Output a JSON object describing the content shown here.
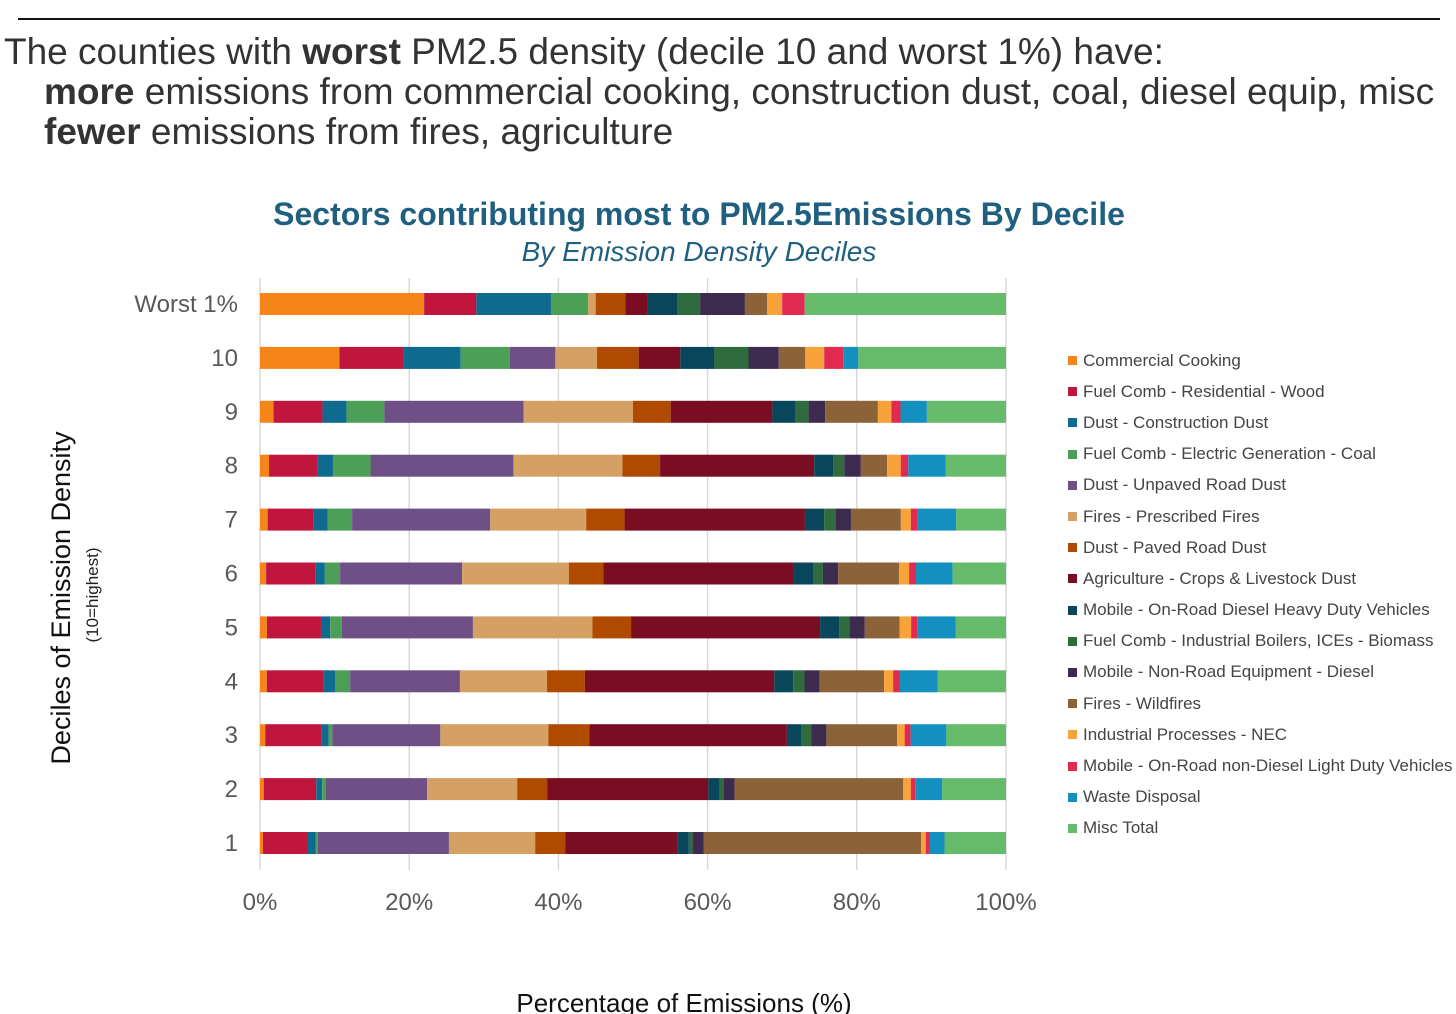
{
  "headline": {
    "line1_pre": "The counties with ",
    "line1_bold": "worst",
    "line1_post": " PM2.5 density (decile 10 and worst 1%) have:",
    "line2_bold": "more",
    "line2_post": " emissions from commercial cooking, construction dust, coal, diesel equip, misc",
    "line3_bold": "fewer",
    "line3_post": " emissions from fires, agriculture"
  },
  "chart_data": {
    "type": "bar",
    "orientation": "horizontal",
    "stacked": "100%",
    "title": "Sectors contributing most to PM2.5Emissions By Decile",
    "subtitle": "By Emission Density Deciles",
    "xlabel": "Percentage of Emissions (%)",
    "ylabel": "Deciles of Emission Density",
    "ylabel_sub": "(10=highest)",
    "xlim": [
      0,
      100
    ],
    "x_ticks": [
      "0%",
      "20%",
      "40%",
      "60%",
      "80%",
      "100%"
    ],
    "grid": "vertical",
    "legend_position": "right",
    "categories": [
      "Worst 1%",
      "10",
      "9",
      "8",
      "7",
      "6",
      "5",
      "4",
      "3",
      "2",
      "1"
    ],
    "series": [
      {
        "name": "Commercial Cooking",
        "color": "#f58518",
        "values": [
          22,
          10.5,
          1.8,
          1.2,
          1.0,
          0.8,
          0.9,
          0.9,
          0.7,
          0.5,
          0.4
        ]
      },
      {
        "name": "Fuel Comb - Residential - Wood",
        "color": "#c0163e",
        "values": [
          7,
          8.5,
          6.5,
          6.5,
          6.0,
          6.5,
          7.0,
          7.5,
          7.5,
          7.0,
          6.0
        ]
      },
      {
        "name": "Dust - Construction Dust",
        "color": "#0f6a8f",
        "values": [
          10,
          7.5,
          3.2,
          2.0,
          1.8,
          1.2,
          1.2,
          1.5,
          1.0,
          0.8,
          1.0
        ]
      },
      {
        "name": "Fuel Comb - Electric Generation - Coal",
        "color": "#4d9f57",
        "values": [
          5,
          6.5,
          5.0,
          5.0,
          3.2,
          2.0,
          1.5,
          2.0,
          0.5,
          0.5,
          0.3
        ]
      },
      {
        "name": "Dust - Unpaved Road Dust",
        "color": "#6e4f86",
        "values": [
          0,
          6.0,
          18.5,
          19.0,
          18.0,
          16.0,
          17.0,
          14.5,
          14.5,
          13.5,
          17.5
        ]
      },
      {
        "name": "Fires - Prescribed Fires",
        "color": "#d4a064",
        "values": [
          1,
          5.5,
          14.5,
          14.5,
          12.5,
          14.0,
          15.5,
          11.5,
          14.5,
          12.0,
          11.5
        ]
      },
      {
        "name": "Dust - Paved Road Dust",
        "color": "#b04a00",
        "values": [
          4,
          5.5,
          5.0,
          5.0,
          5.0,
          4.5,
          5.0,
          5.0,
          5.5,
          4.0,
          4.0
        ]
      },
      {
        "name": "Agriculture - Crops & Livestock Dust",
        "color": "#7a0d22",
        "values": [
          3,
          5.5,
          13.5,
          20.5,
          23.5,
          25.0,
          24.5,
          25.0,
          26.5,
          21.5,
          15.0
        ]
      },
      {
        "name": "Mobile - On-Road Diesel Heavy Duty Vehicles",
        "color": "#09465c",
        "values": [
          4,
          4.5,
          3.0,
          2.5,
          2.5,
          2.5,
          2.5,
          2.5,
          2.0,
          1.5,
          1.5
        ]
      },
      {
        "name": "Fuel Comb - Industrial Boilers, ICEs - Biomass",
        "color": "#2f6b3c",
        "values": [
          3,
          4.5,
          1.8,
          1.5,
          1.5,
          1.3,
          1.3,
          1.5,
          1.3,
          0.5,
          0.5
        ]
      },
      {
        "name": "Mobile - Non-Road Equipment - Diesel",
        "color": "#3d2a4f",
        "values": [
          6,
          4.0,
          2.2,
          2.2,
          2.0,
          2.0,
          2.0,
          2.0,
          2.0,
          1.5,
          1.5
        ]
      },
      {
        "name": "Fires - Wildfires",
        "color": "#8c6239",
        "values": [
          3,
          3.5,
          7.0,
          3.5,
          6.5,
          8.0,
          4.5,
          8.5,
          9.5,
          22.5,
          29.0
        ]
      },
      {
        "name": "Industrial Processes - NEC",
        "color": "#f8a33a",
        "values": [
          2,
          2.5,
          1.8,
          1.8,
          1.3,
          1.3,
          1.5,
          1.2,
          1.0,
          1.0,
          0.6
        ]
      },
      {
        "name": "Mobile - On-Road non-Diesel Light Duty Vehicles",
        "color": "#e2294f",
        "values": [
          3,
          2.5,
          1.2,
          1.0,
          0.9,
          0.9,
          0.8,
          0.9,
          0.8,
          0.6,
          0.5
        ]
      },
      {
        "name": "Waste Disposal",
        "color": "#138fc0",
        "values": [
          0,
          2.0,
          3.5,
          5.0,
          5.0,
          4.8,
          5.0,
          5.0,
          4.8,
          3.6,
          2.0
        ]
      },
      {
        "name": "Misc Total",
        "color": "#66bb6a",
        "values": [
          27,
          19.5,
          10.5,
          8.0,
          6.5,
          7.0,
          6.5,
          9.0,
          8.0,
          8.5,
          8.2
        ]
      }
    ]
  }
}
